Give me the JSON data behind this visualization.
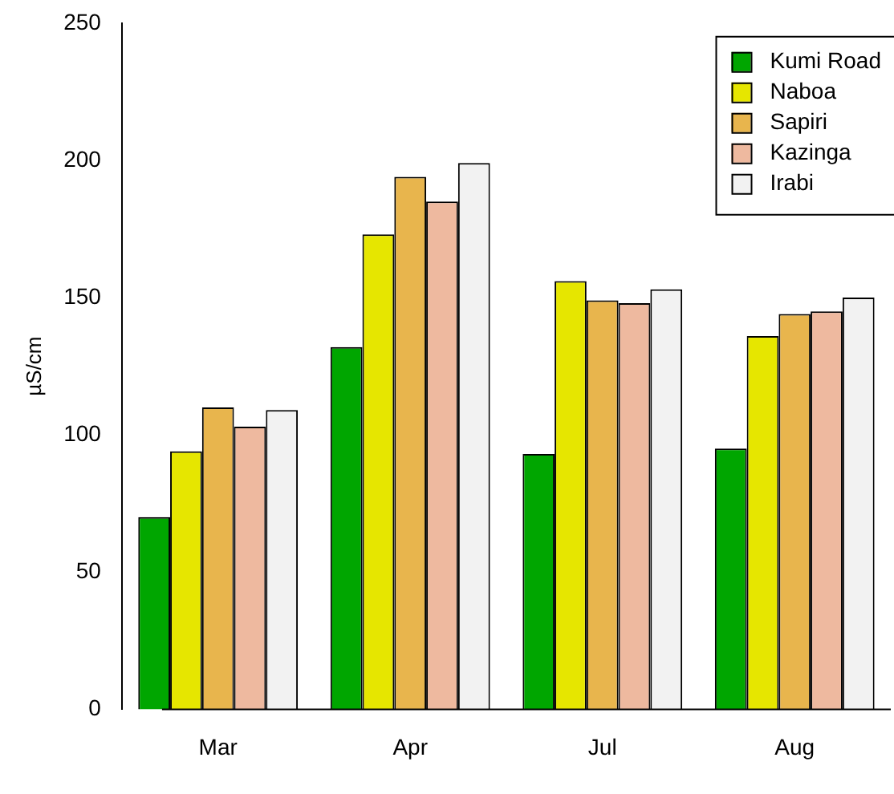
{
  "chart_data": {
    "type": "bar",
    "ylabel": "µS/cm",
    "categories": [
      "Mar",
      "Apr",
      "Jul",
      "Aug"
    ],
    "series": [
      {
        "name": "Kumi Road",
        "color": "#00a600",
        "values": [
          70,
          132,
          93,
          95
        ]
      },
      {
        "name": "Naboa",
        "color": "#e6e600",
        "values": [
          94,
          173,
          156,
          136
        ]
      },
      {
        "name": "Sapiri",
        "color": "#e8b54d",
        "values": [
          110,
          194,
          149,
          144
        ]
      },
      {
        "name": "Kazinga",
        "color": "#eeb99f",
        "values": [
          103,
          185,
          148,
          145
        ]
      },
      {
        "name": "Irabi",
        "color": "#f2f2f2",
        "values": [
          109,
          199,
          153,
          150
        ]
      }
    ],
    "ylim": [
      0,
      250
    ],
    "yticks": [
      0,
      50,
      100,
      150,
      200,
      250
    ],
    "grid": false,
    "legend": "top right"
  }
}
